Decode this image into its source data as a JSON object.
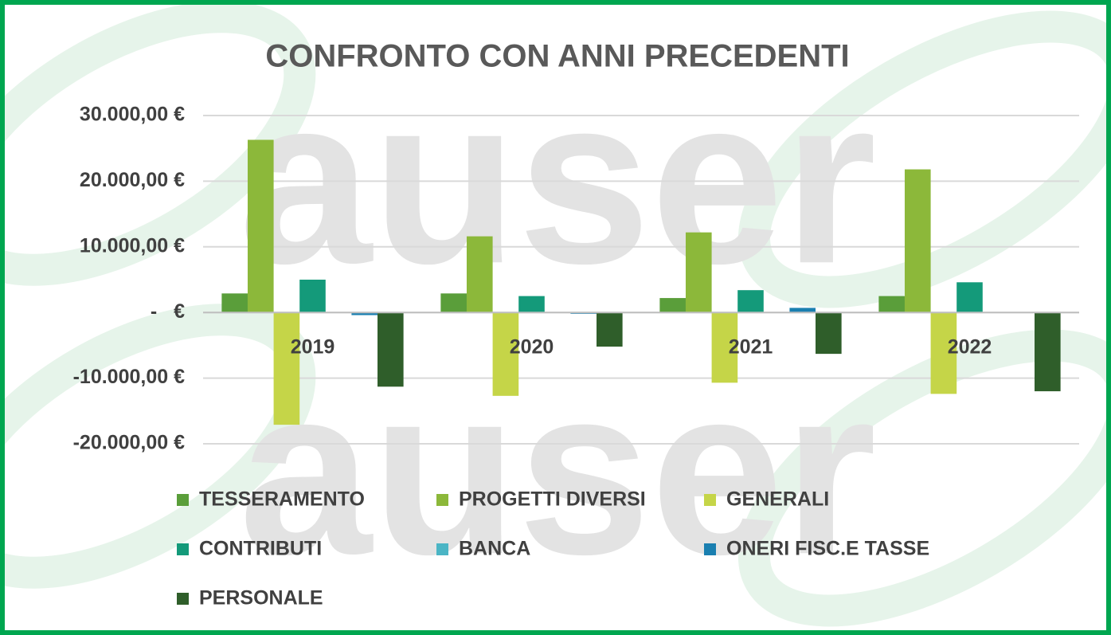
{
  "background_text": "auser",
  "chart_data": {
    "type": "bar",
    "title": "CONFRONTO CON ANNI PRECEDENTI",
    "categories": [
      "2019",
      "2020",
      "2021",
      "2022"
    ],
    "series": [
      {
        "name": "TESSERAMENTO",
        "color": "#5a9e3a",
        "values": [
          2900,
          2900,
          2200,
          2500
        ]
      },
      {
        "name": "PROGETTI DIVERSI",
        "color": "#8cb83a",
        "values": [
          26300,
          11600,
          12200,
          21800
        ]
      },
      {
        "name": "GENERALI",
        "color": "#c5d548",
        "values": [
          -17100,
          -12700,
          -10700,
          -12400
        ]
      },
      {
        "name": "CONTRIBUTI",
        "color": "#149a7a",
        "values": [
          5000,
          2500,
          3400,
          4600
        ]
      },
      {
        "name": "BANCA",
        "color": "#4bb5c5",
        "values": [
          0,
          0,
          0,
          0
        ]
      },
      {
        "name": "ONERI FISC.E TASSE",
        "color": "#1a7fb0",
        "values": [
          -400,
          -200,
          700,
          0
        ]
      },
      {
        "name": "PERSONALE",
        "color": "#2f5e2a",
        "values": [
          -11300,
          -5200,
          -6300,
          -12000
        ]
      }
    ],
    "ylim": [
      -20000,
      30000
    ],
    "yticks": [
      {
        "value": -20000,
        "label": "-20.000,00 €"
      },
      {
        "value": -10000,
        "label": "-10.000,00 €"
      },
      {
        "value": 0,
        "label": "-   €"
      },
      {
        "value": 10000,
        "label": "10.000,00 €"
      },
      {
        "value": 20000,
        "label": "20.000,00 €"
      },
      {
        "value": 30000,
        "label": "30.000,00 €"
      }
    ],
    "grid": true,
    "legend": "bottom"
  }
}
